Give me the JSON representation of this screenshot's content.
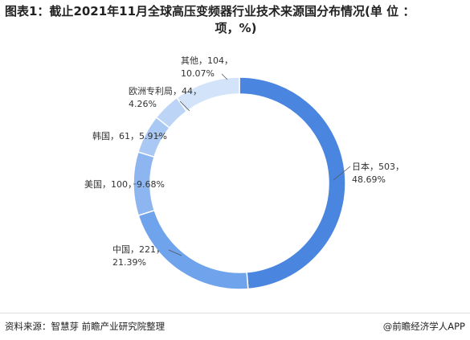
{
  "title_line1": "图表1：截止2021年11月全球高压变频器行业技术来源国分布情况(单 位 ：",
  "title_line2": "项，%)",
  "source": "资料来源：智慧芽 前瞻产业研究院整理",
  "brand": "@前瞻经济学人APP",
  "chart_data": {
    "type": "pie",
    "style": "donut",
    "title": "图表1：截止2021年11月全球高压变频器行业技术来源国分布情况(单 位 ：项，%)",
    "categories": [
      "日本",
      "中国",
      "美国",
      "韩国",
      "欧洲专利局",
      "其他"
    ],
    "values": [
      503,
      221,
      100,
      61,
      44,
      104
    ],
    "percents": [
      48.69,
      21.39,
      9.68,
      5.91,
      4.26,
      10.07
    ],
    "labels": [
      [
        "日本，503，",
        "48.69%"
      ],
      [
        "中国，221，",
        "21.39%"
      ],
      [
        "美国，100，9.68%"
      ],
      [
        "韩国，61，5.91%"
      ],
      [
        "欧洲专利局，44，",
        "4.26%"
      ],
      [
        "其他，104，",
        "10.07%"
      ]
    ],
    "colors": [
      "#4a86e0",
      "#6fa3ec",
      "#8db6f0",
      "#a9c9f4",
      "#bcd5f6",
      "#d3e4fa"
    ]
  }
}
